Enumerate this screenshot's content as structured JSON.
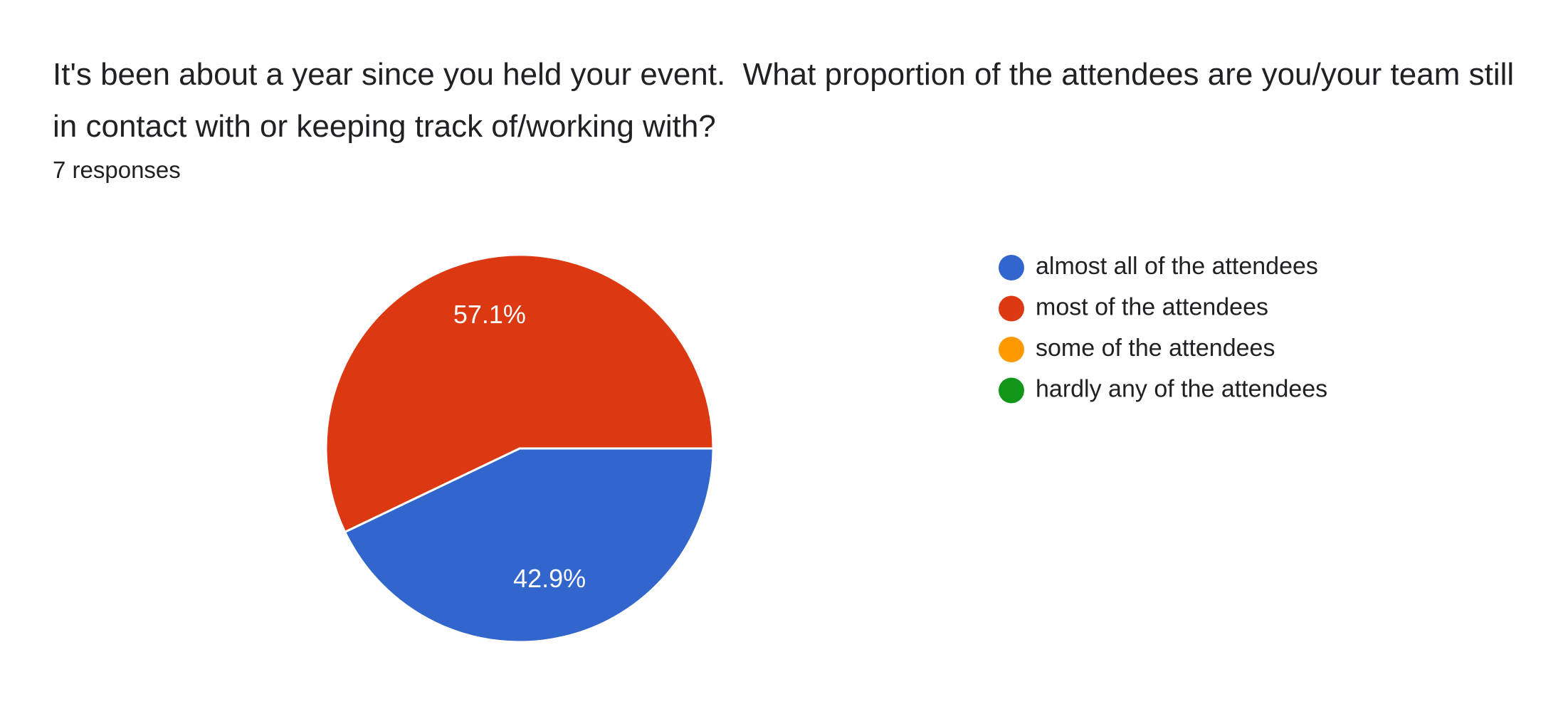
{
  "chart_data": {
    "type": "pie",
    "title": "It's been about a year since you held your event.  What proportion of the attendees are you/your team still in contact with or keeping track of/working with?",
    "subtitle": "7 responses",
    "categories": [
      "almost all of the attendees",
      "most of the attendees",
      "some of the attendees",
      "hardly any of the attendees"
    ],
    "values": [
      42.9,
      57.1,
      0,
      0
    ],
    "value_labels": [
      "42.9%",
      "57.1%",
      null,
      null
    ],
    "colors": [
      "#3366cc",
      "#dc3912",
      "#ff9900",
      "#109618"
    ],
    "legend": "right"
  }
}
